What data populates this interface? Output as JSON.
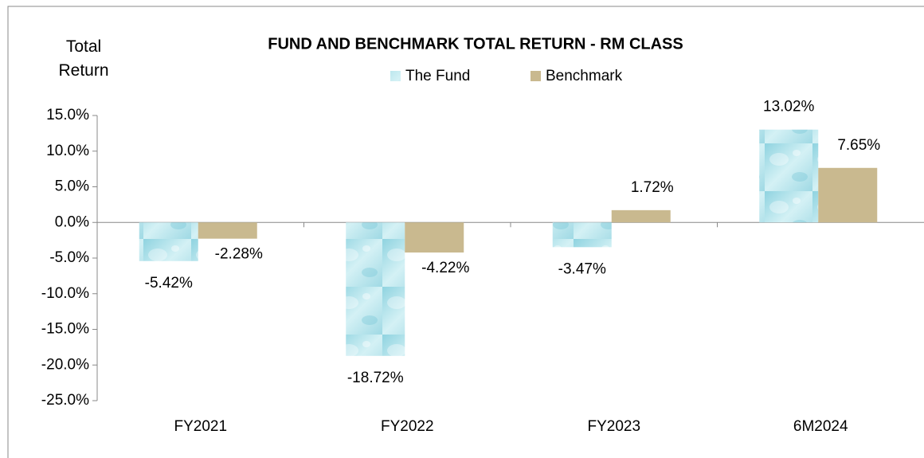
{
  "chart_data": {
    "type": "bar",
    "title": "FUND AND BENCHMARK TOTAL RETURN - RM CLASS",
    "y_label": "Total Return",
    "categories": [
      "FY2021",
      "FY2022",
      "FY2023",
      "6M2024"
    ],
    "series": [
      {
        "name": "The Fund",
        "color": "#a9dde6",
        "values": [
          -5.42,
          -18.72,
          -3.47,
          13.02
        ],
        "value_labels": [
          "-5.42%",
          "-18.72%",
          "-3.47%",
          "13.02%"
        ]
      },
      {
        "name": "Benchmark",
        "color": "#c9b98f",
        "values": [
          -2.28,
          -4.22,
          1.72,
          7.65
        ],
        "value_labels": [
          "-2.28%",
          "-4.22%",
          "1.72%",
          "7.65%"
        ]
      }
    ],
    "ylim": [
      -25,
      15
    ],
    "yticks": [
      {
        "value": 15,
        "label": "15.0%"
      },
      {
        "value": 10,
        "label": "10.0%"
      },
      {
        "value": 5,
        "label": "5.0%"
      },
      {
        "value": 0,
        "label": "0.0%"
      },
      {
        "value": -5,
        "label": "-5.0%"
      },
      {
        "value": -10,
        "label": "-10.0%"
      },
      {
        "value": -15,
        "label": "-15.0%"
      },
      {
        "value": -20,
        "label": "-20.0%"
      },
      {
        "value": -25,
        "label": "-25.0%"
      }
    ],
    "legend": "top"
  }
}
